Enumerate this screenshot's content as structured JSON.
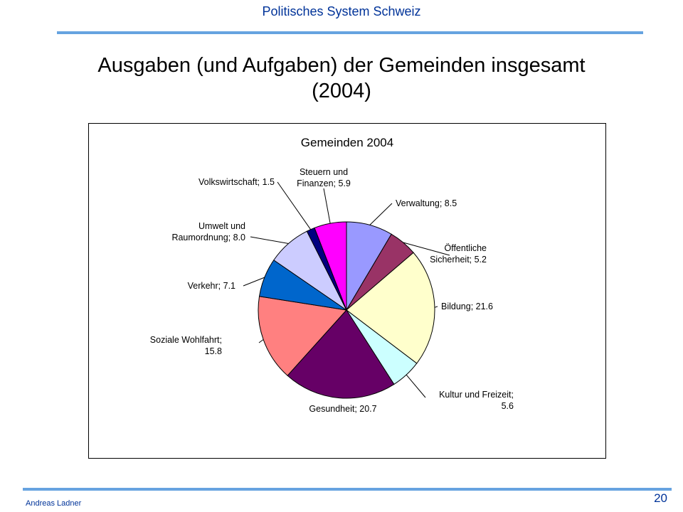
{
  "header": {
    "title": "Politisches System Schweiz"
  },
  "slide": {
    "title_line1": "Ausgaben (und Aufgaben) der Gemeinden insgesamt",
    "title_line2": "(2004)"
  },
  "footer": {
    "author": "Andreas Ladner",
    "page_number": "20"
  },
  "colors": {
    "accent_text": "#003399",
    "rule": "#66a3e0"
  },
  "chart_data": {
    "type": "pie",
    "title": "Gemeinden 2004",
    "start_angle_deg": 0,
    "direction": "clockwise",
    "slices": [
      {
        "label": "Verwaltung",
        "value": 8.5,
        "color": "#9999ff",
        "label_lines": [
          "Verwaltung; 8.5"
        ]
      },
      {
        "label": "Öffentliche Sicherheit",
        "value": 5.2,
        "color": "#993366",
        "label_lines": [
          "Öffentliche",
          "Sicherheit; 5.2"
        ]
      },
      {
        "label": "Bildung",
        "value": 21.6,
        "color": "#ffffcc",
        "label_lines": [
          "Bildung; 21.6"
        ]
      },
      {
        "label": "Kultur und Freizeit",
        "value": 5.6,
        "color": "#ccffff",
        "label_lines": [
          "Kultur und Freizeit;",
          "5.6"
        ]
      },
      {
        "label": "Gesundheit",
        "value": 20.7,
        "color": "#660066",
        "label_lines": [
          "Gesundheit; 20.7"
        ]
      },
      {
        "label": "Soziale Wohlfahrt",
        "value": 15.8,
        "color": "#ff8080",
        "label_lines": [
          "Soziale Wohlfahrt;",
          "15.8"
        ]
      },
      {
        "label": "Verkehr",
        "value": 7.1,
        "color": "#0066cc",
        "label_lines": [
          "Verkehr; 7.1"
        ]
      },
      {
        "label": "Umwelt und Raumordnung",
        "value": 8.0,
        "color": "#ccccff",
        "label_lines": [
          "Umwelt und",
          "Raumordnung; 8.0"
        ]
      },
      {
        "label": "Volkswirtschaft",
        "value": 1.5,
        "color": "#000080",
        "label_lines": [
          "Volkswirtschaft; 1.5"
        ]
      },
      {
        "label": "Steuern und Finanzen",
        "value": 5.9,
        "color": "#ff00ff",
        "label_lines": [
          "Steuern und",
          "Finanzen; 5.9"
        ]
      }
    ]
  }
}
